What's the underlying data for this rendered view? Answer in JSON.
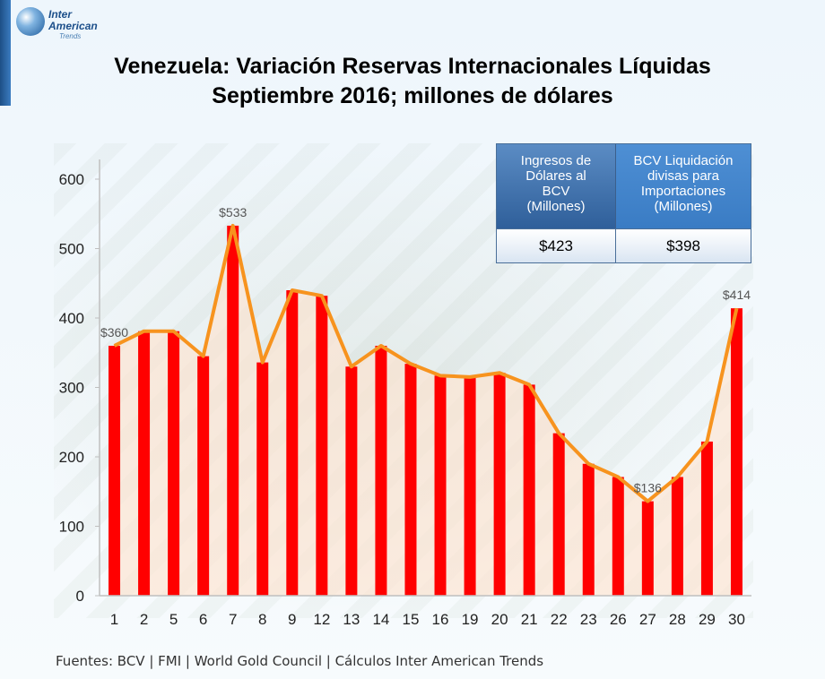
{
  "logo": {
    "line1": "Inter",
    "line2": "American",
    "line3": "Trends"
  },
  "title": {
    "line1": "Venezuela: Variación Reservas Internacionales Líquidas",
    "line2": "Septiembre 2016; millones de dólares"
  },
  "info_table": {
    "left_header": [
      "Ingresos de",
      "Dólares al",
      "BCV",
      "(Millones)"
    ],
    "right_header": [
      "BCV Liquidación",
      "divisas para",
      "Importaciones",
      "(Millones)"
    ],
    "left_value": "$423",
    "right_value": "$398"
  },
  "sources": "Fuentes: BCV | FMI | World Gold Council  | Cálculos Inter American Trends",
  "colors": {
    "bar": "#ff0000",
    "line": "#f7931e",
    "area": "#fde3d0"
  },
  "chart_data": {
    "type": "bar",
    "categories": [
      "1",
      "2",
      "5",
      "6",
      "7",
      "8",
      "9",
      "12",
      "13",
      "14",
      "15",
      "16",
      "19",
      "20",
      "21",
      "22",
      "23",
      "26",
      "27",
      "28",
      "29",
      "30"
    ],
    "values": [
      360,
      381,
      381,
      345,
      533,
      336,
      440,
      432,
      330,
      360,
      334,
      317,
      315,
      321,
      304,
      234,
      190,
      171,
      136,
      171,
      222,
      414
    ],
    "data_labels": {
      "0": "$360",
      "4": "$533",
      "18": "$136",
      "21": "$414"
    },
    "ylim": [
      0,
      650
    ],
    "yticks": [
      0,
      100,
      200,
      300,
      400,
      500,
      600
    ],
    "overlay": "line-area",
    "grid": false,
    "xlabel": "",
    "ylabel": ""
  }
}
